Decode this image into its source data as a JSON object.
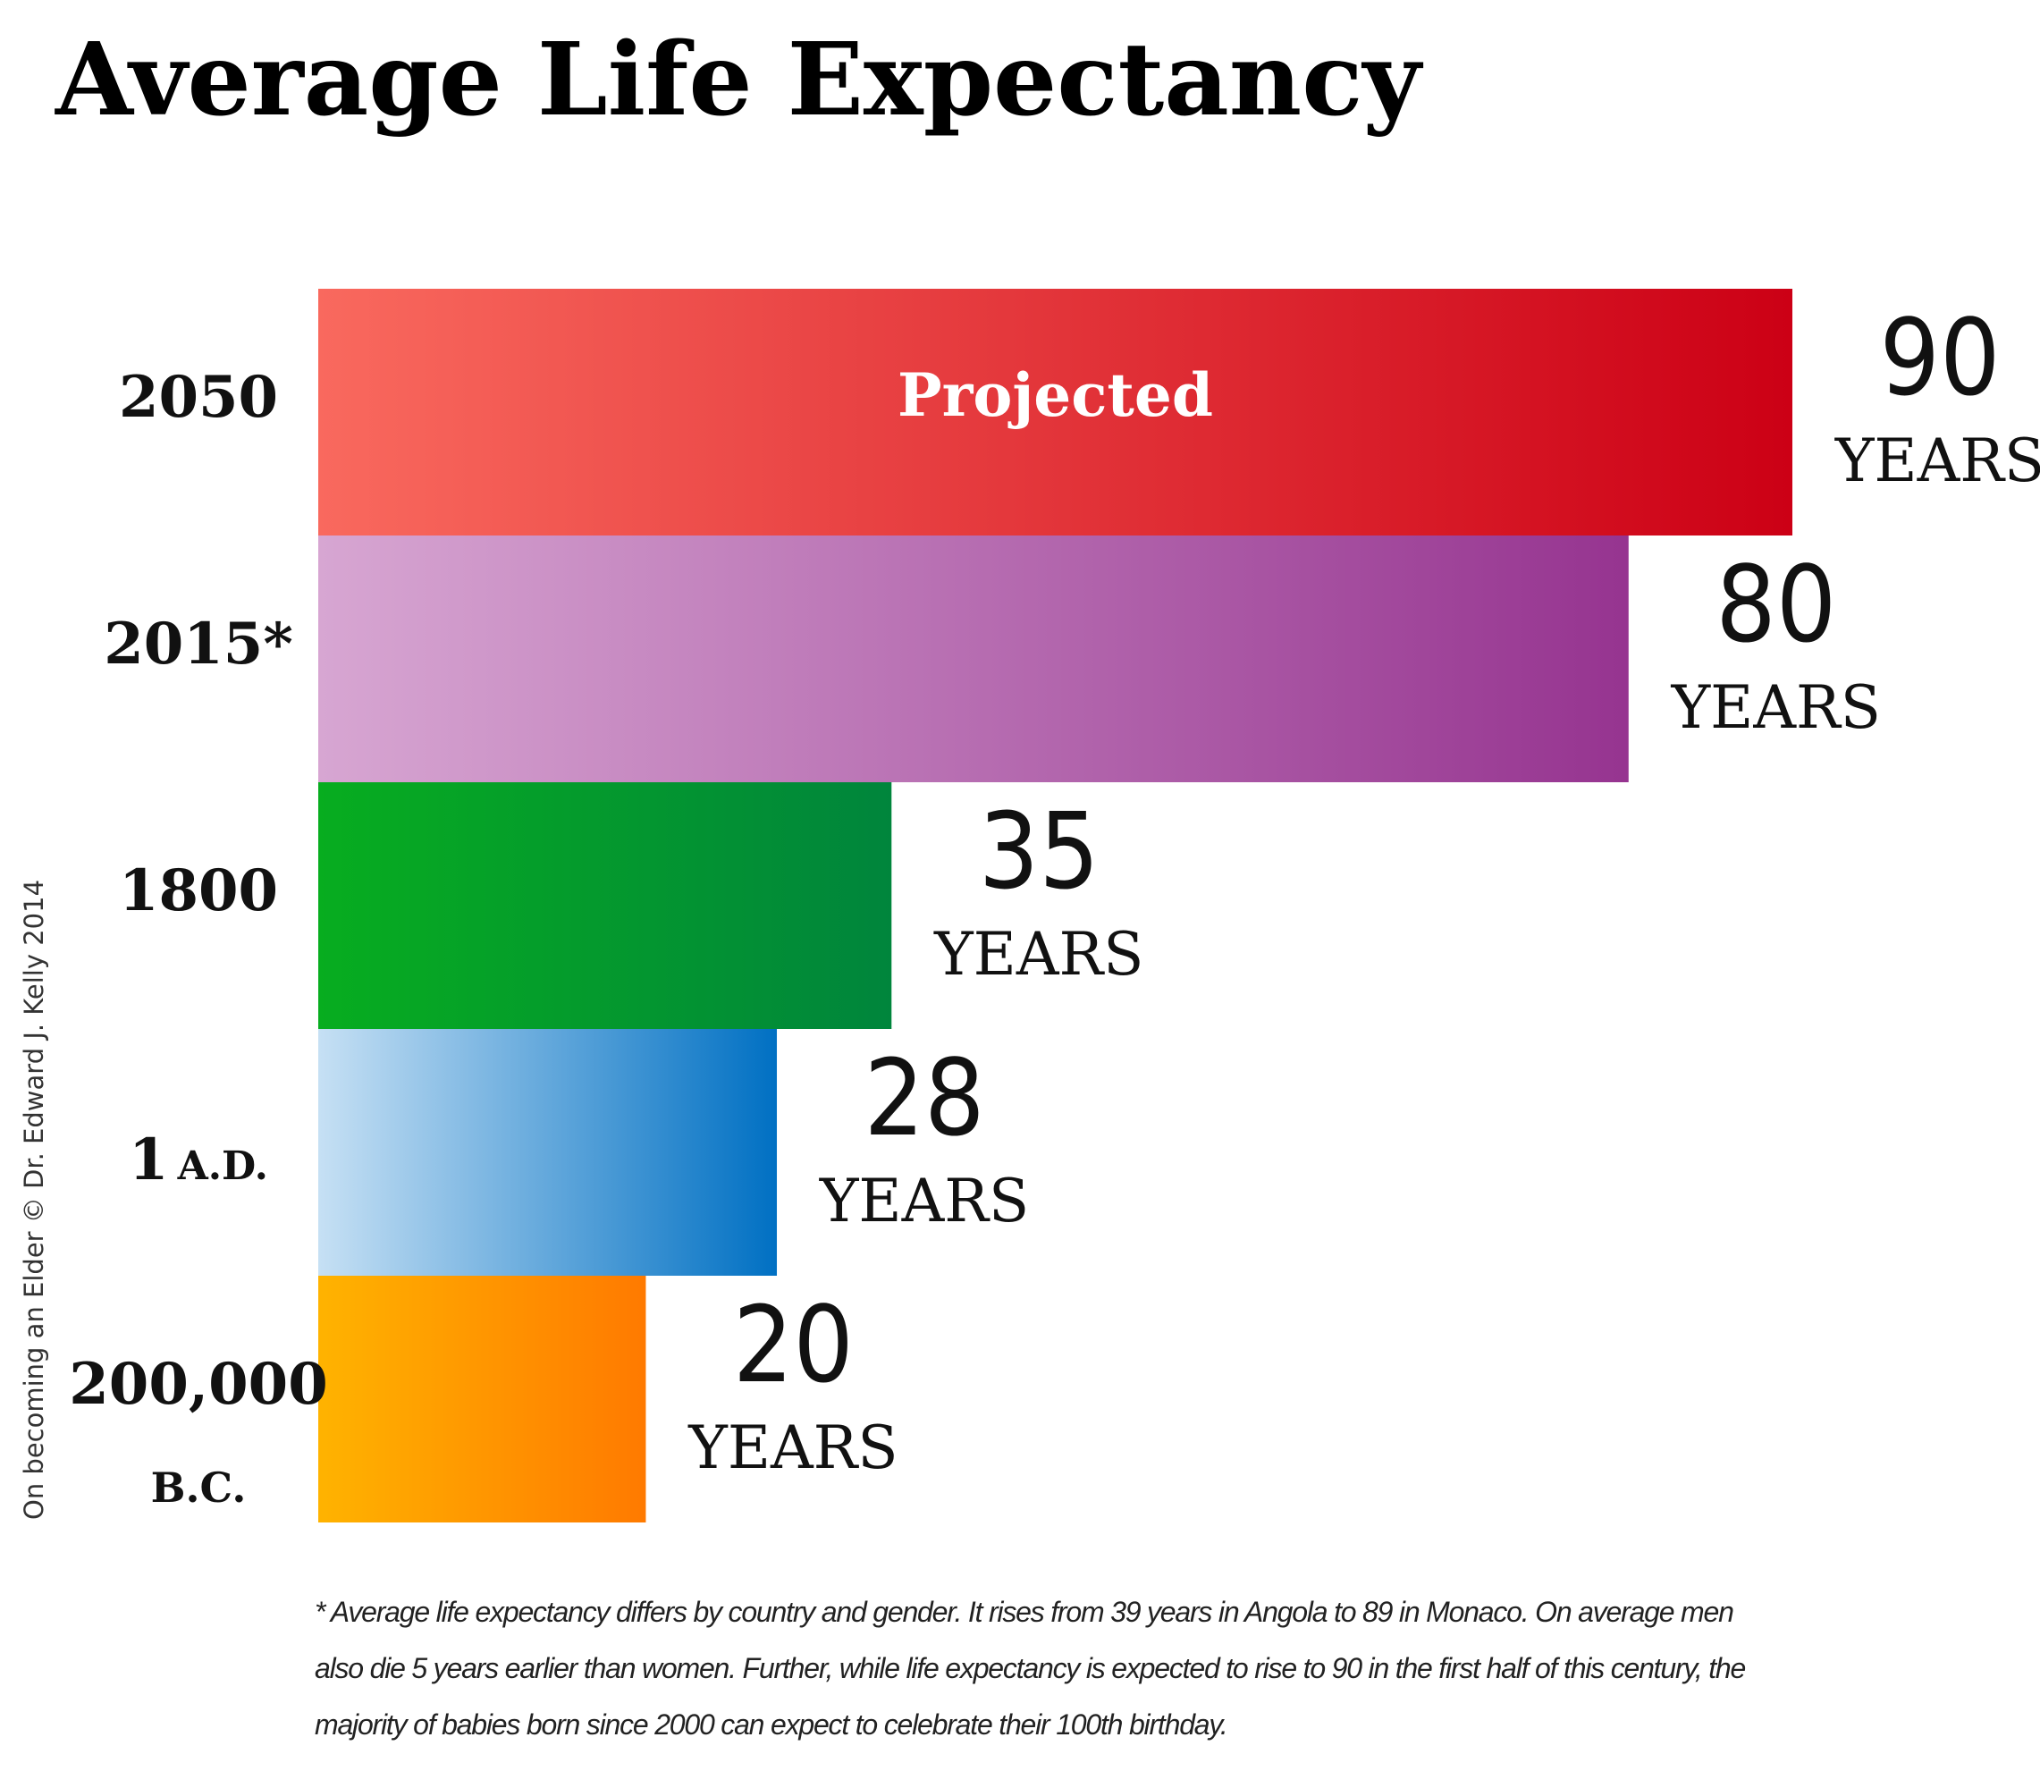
{
  "chart_data": {
    "type": "bar",
    "orientation": "horizontal",
    "title": "Average Life Expectancy",
    "categories": [
      {
        "label": "2050",
        "sub": ""
      },
      {
        "label": "2015*",
        "sub": ""
      },
      {
        "label": "1800",
        "sub": ""
      },
      {
        "label": "1",
        "sub": "A.D."
      },
      {
        "label": "200,000",
        "sub": "B.C."
      }
    ],
    "values": [
      90,
      80,
      35,
      28,
      20
    ],
    "unit": "YEARS",
    "bar_annotation": {
      "index": 0,
      "text": "Projected"
    },
    "xlim": [
      0,
      90
    ],
    "grid": false,
    "colors": [
      {
        "from": "#f9695e",
        "to": "#cc0015"
      },
      {
        "from": "#d7a6d2",
        "to": "#963490"
      },
      {
        "from": "#07ad1f",
        "to": "#00853c"
      },
      {
        "from": "#c6e0f4",
        "to": "#0070c3"
      },
      {
        "from": "#ffb300",
        "to": "#ff7a00"
      }
    ]
  },
  "credit": "On becoming an Elder © Dr. Edward J. Kelly 2014",
  "footnote": "* Average life expectancy differs by country and gender. It rises from 39 years in Angola to 89 in Monaco. On average men also die 5 years earlier than women. Further, while life expectancy is expected to rise to 90 in the first half of this century, the majority of babies born since 2000 can expect to celebrate their 100th birthday."
}
